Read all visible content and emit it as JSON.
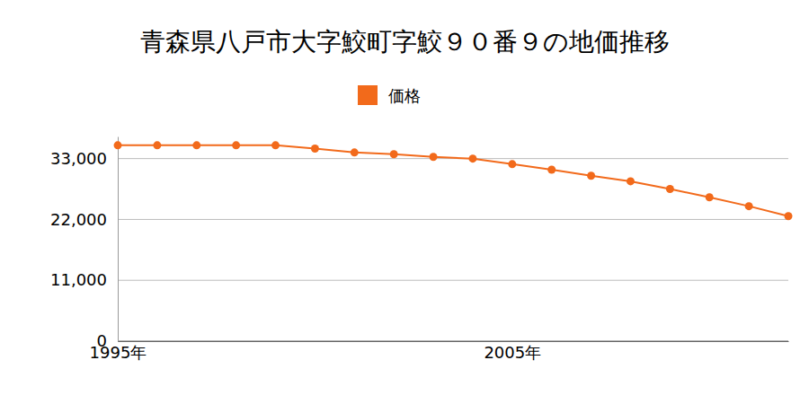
{
  "chart_data": {
    "type": "line",
    "title": "青森県八戸市大字鮫町字鮫９０番９の地価推移",
    "x": [
      1995,
      1996,
      1997,
      1998,
      1999,
      2000,
      2001,
      2002,
      2003,
      2004,
      2005,
      2006,
      2007,
      2008,
      2009,
      2010,
      2011,
      2012
    ],
    "series": [
      {
        "name": "価格",
        "color": "#f26a1b",
        "marker": "circle",
        "values": [
          35400,
          35400,
          35400,
          35400,
          35400,
          34800,
          34100,
          33800,
          33300,
          33000,
          32000,
          31000,
          29900,
          28900,
          27500,
          26000,
          24400,
          22600
        ]
      }
    ],
    "xlim": [
      1995,
      2012
    ],
    "xticks": [
      {
        "value": 1995,
        "label": "1995年"
      },
      {
        "value": 2005,
        "label": "2005年"
      }
    ],
    "ylim": [
      0,
      37000
    ],
    "yticks": [
      {
        "value": 0,
        "label": "0"
      },
      {
        "value": 11000,
        "label": "11,000"
      },
      {
        "value": 22000,
        "label": "22,000"
      },
      {
        "value": 33000,
        "label": "33,000"
      }
    ],
    "grid": true,
    "legend": "top"
  }
}
